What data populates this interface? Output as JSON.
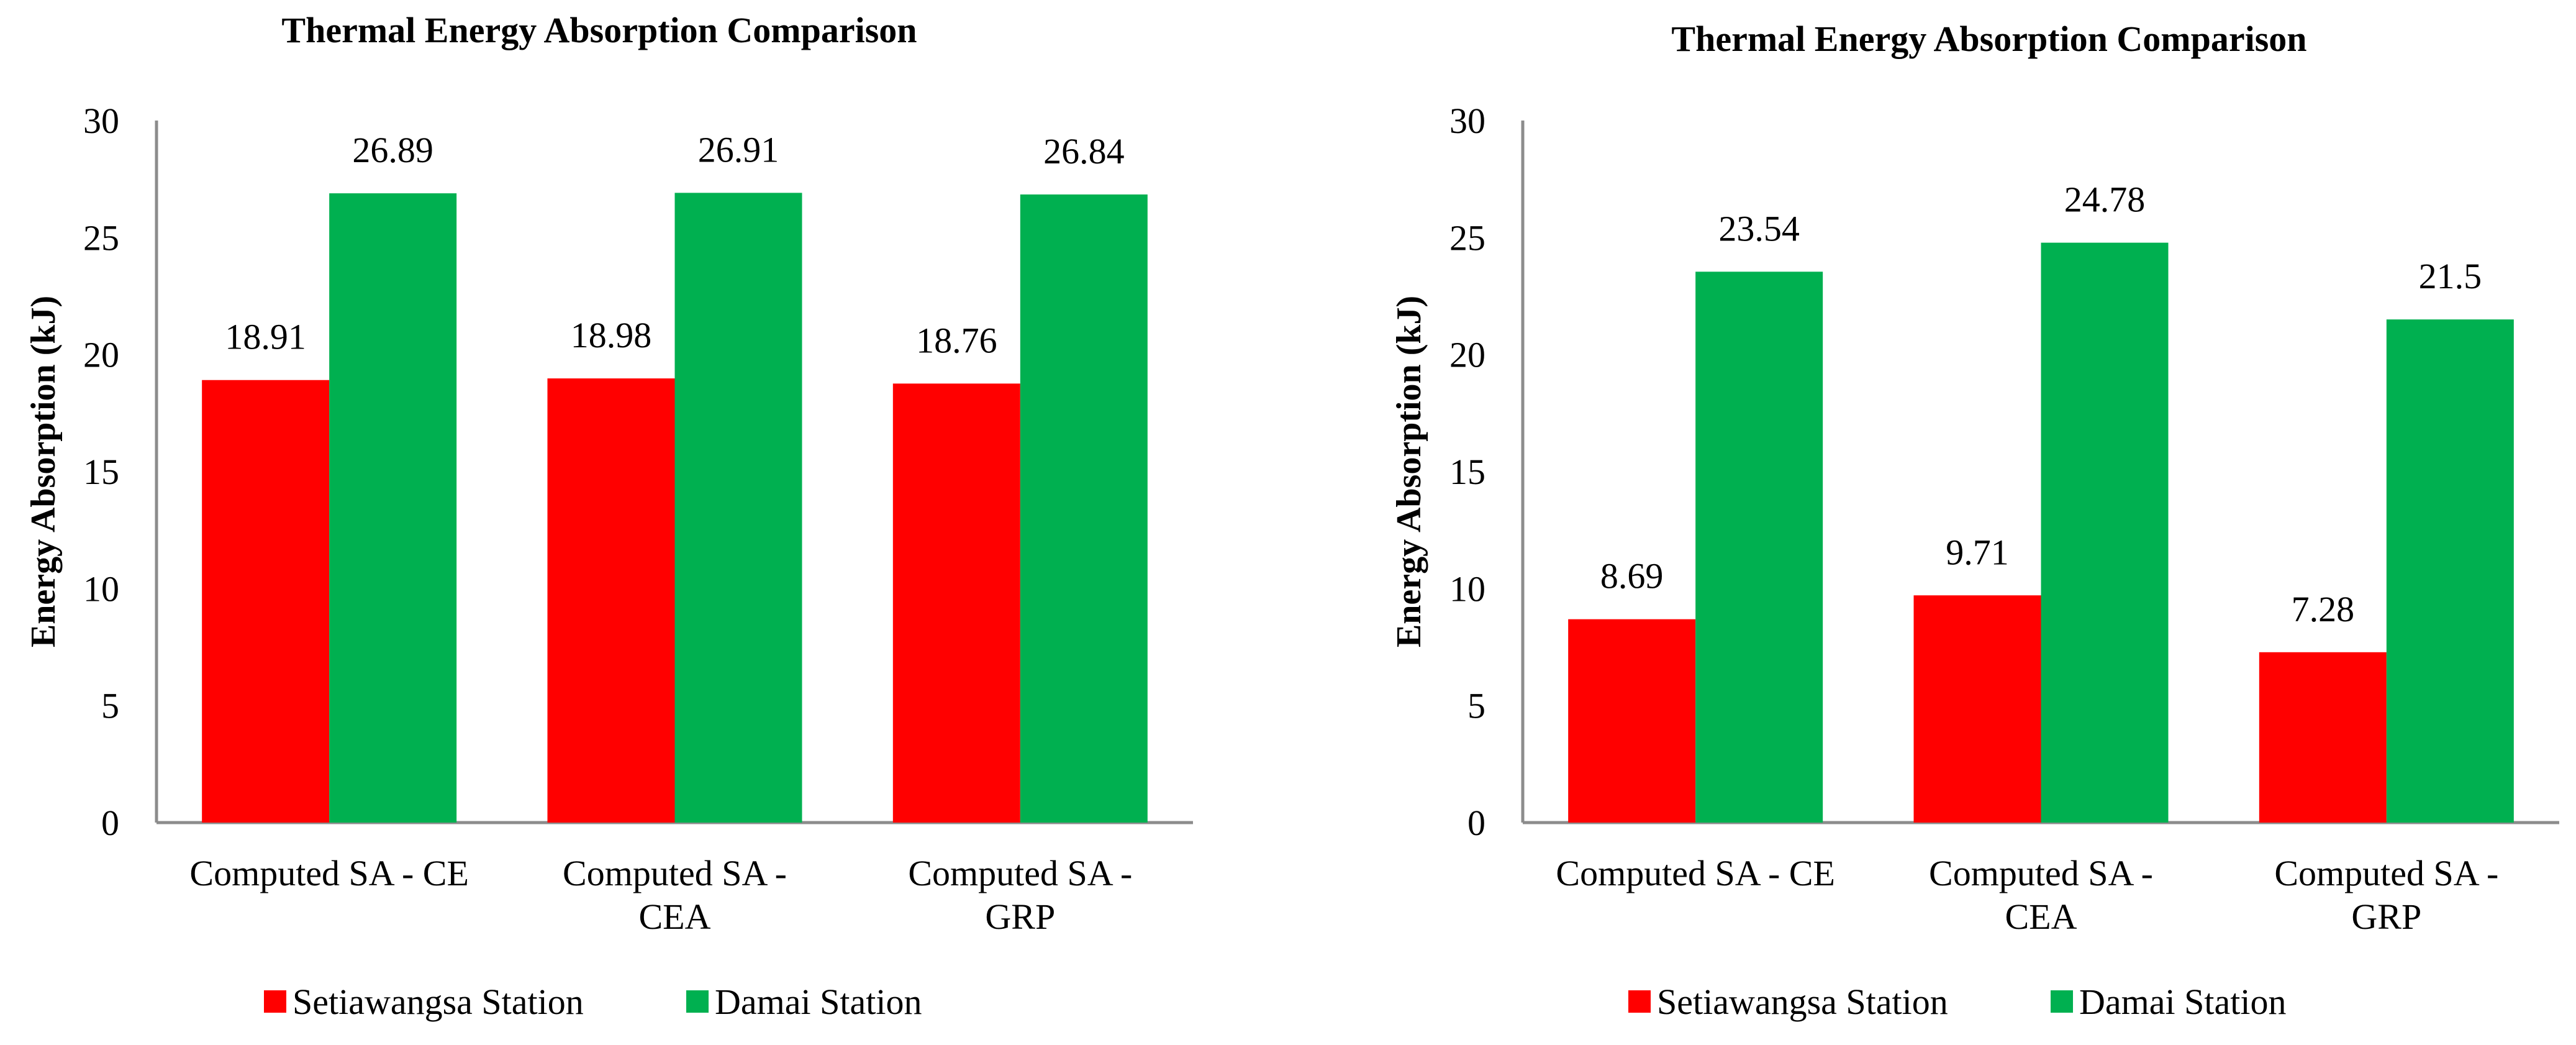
{
  "charts": [
    {
      "chart_data": {
        "type": "bar",
        "title": "Thermal Energy Absorption Comparison",
        "xlabel": "",
        "ylabel": "Energy Absorption (kJ)",
        "ylim": [
          0,
          30
        ],
        "yticks": [
          0,
          5,
          10,
          15,
          20,
          25,
          30
        ],
        "categories": [
          [
            "Computed SA - CE"
          ],
          [
            "Computed SA -",
            "CEA"
          ],
          [
            "Computed SA -",
            "GRP"
          ]
        ],
        "series": [
          {
            "name": "Setiawangsa Station",
            "color": "#ff0000",
            "values": [
              18.91,
              18.98,
              18.76
            ]
          },
          {
            "name": "Damai Station",
            "color": "#00b050",
            "values": [
              26.89,
              26.91,
              26.84
            ]
          }
        ],
        "grid": false,
        "legend": "bottom"
      }
    },
    {
      "chart_data": {
        "type": "bar",
        "title": "Thermal Energy Absorption Comparison",
        "xlabel": "",
        "ylabel": "Energy Absorption (kJ)",
        "ylim": [
          0,
          30
        ],
        "yticks": [
          0,
          5,
          10,
          15,
          20,
          25,
          30
        ],
        "categories": [
          [
            "Computed SA - CE"
          ],
          [
            "Computed SA -",
            "CEA"
          ],
          [
            "Computed SA -",
            "GRP"
          ]
        ],
        "series": [
          {
            "name": "Setiawangsa Station",
            "color": "#ff0000",
            "values": [
              8.69,
              9.71,
              7.28
            ]
          },
          {
            "name": "Damai Station",
            "color": "#00b050",
            "values": [
              23.54,
              24.78,
              21.5
            ]
          }
        ],
        "grid": false,
        "legend": "bottom"
      }
    }
  ]
}
